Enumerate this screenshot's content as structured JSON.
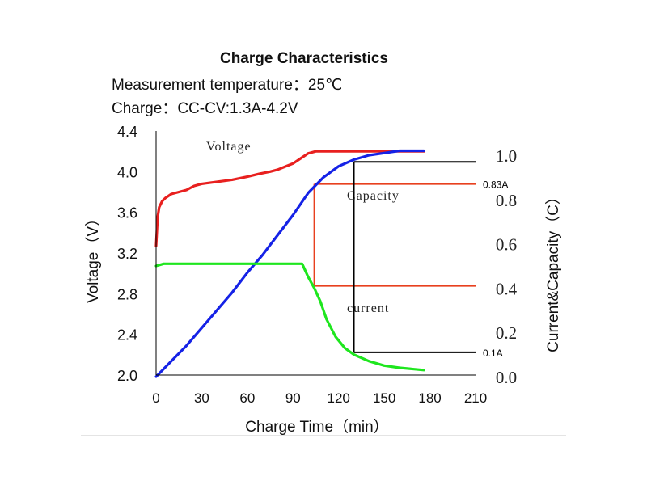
{
  "chart_data": {
    "type": "line",
    "title": "Charge Characteristics",
    "subtitle_lines": [
      "Measurement temperature：25℃",
      "Charge：CC-CV:1.3A-4.2V"
    ],
    "xlabel": "Charge Time（min）",
    "ylabel_left": "Voltage（V）",
    "ylabel_right": "Current&Capacity（C）",
    "xlim": [
      0,
      210
    ],
    "ylim_left": [
      2.0,
      4.4
    ],
    "ylim_right": [
      0.0,
      1.1
    ],
    "x_ticks": [
      "0",
      "30",
      "60",
      "90",
      "120",
      "150",
      "180",
      "210"
    ],
    "y_left_ticks": [
      "2.0",
      "2.4",
      "2.8",
      "3.2",
      "3.6",
      "4.0",
      "4.4"
    ],
    "y_right_ticks": [
      "0.0",
      "0.2",
      "0.4",
      "0.6",
      "0.8",
      "1.0"
    ],
    "grid": false,
    "series": [
      {
        "name": "Voltage",
        "axis": "left",
        "color": "#e8201f",
        "x": [
          0,
          1,
          2,
          4,
          6,
          10,
          15,
          20,
          25,
          30,
          35,
          40,
          50,
          60,
          68,
          75,
          80,
          85,
          90,
          95,
          100,
          105,
          120,
          140,
          160,
          176
        ],
        "y": [
          3.27,
          3.55,
          3.65,
          3.71,
          3.74,
          3.78,
          3.8,
          3.82,
          3.86,
          3.88,
          3.89,
          3.9,
          3.92,
          3.95,
          3.98,
          4.0,
          4.02,
          4.05,
          4.08,
          4.13,
          4.18,
          4.2,
          4.2,
          4.2,
          4.2,
          4.2
        ]
      },
      {
        "name": "Capacity",
        "axis": "right",
        "color": "#1522e6",
        "x": [
          0,
          10,
          20,
          30,
          40,
          50,
          60,
          70,
          80,
          90,
          100,
          110,
          120,
          130,
          140,
          150,
          160,
          176
        ],
        "y": [
          0.0,
          0.07,
          0.14,
          0.22,
          0.3,
          0.38,
          0.47,
          0.55,
          0.64,
          0.73,
          0.83,
          0.9,
          0.95,
          0.98,
          1.0,
          1.01,
          1.02,
          1.02
        ]
      },
      {
        "name": "current",
        "axis": "right",
        "color": "#1ee61e",
        "x": [
          0,
          5,
          20,
          60,
          96,
          100,
          104,
          108,
          112,
          118,
          124,
          130,
          140,
          150,
          160,
          176
        ],
        "y": [
          0.5,
          0.51,
          0.51,
          0.51,
          0.51,
          0.45,
          0.4,
          0.34,
          0.26,
          0.18,
          0.13,
          0.1,
          0.07,
          0.05,
          0.04,
          0.03
        ]
      }
    ],
    "annotations": [
      {
        "text": "0.83A",
        "x": 104,
        "y": 0.87,
        "color": "#e8401f"
      },
      {
        "text": "0.1A",
        "x": 130,
        "y": 0.11,
        "color": "#000000"
      }
    ],
    "guides": {
      "red_box": {
        "color": "#e8401f",
        "x0": 104,
        "x1": 210,
        "y_top": 0.87,
        "y_bottom": 0.41
      },
      "black_box": {
        "color": "#000000",
        "x0": 130,
        "x1": 210,
        "y_top": 0.97,
        "y_bottom": 0.11
      }
    }
  }
}
